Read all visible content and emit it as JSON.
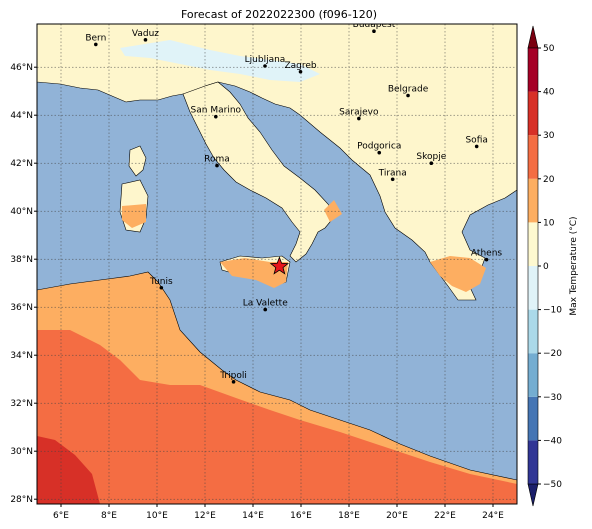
{
  "title": "Forecast of 2022022300 (f096-120)",
  "map": {
    "lon_range": [
      5,
      25
    ],
    "lat_range": [
      27.8,
      47.8
    ],
    "lon_ticks": [
      6,
      8,
      10,
      12,
      14,
      16,
      18,
      20,
      22,
      24
    ],
    "lat_ticks": [
      28,
      30,
      32,
      34,
      36,
      38,
      40,
      42,
      44,
      46
    ],
    "lon_tick_labels": [
      "6°E",
      "8°E",
      "10°E",
      "12°E",
      "14°E",
      "16°E",
      "18°E",
      "20°E",
      "22°E",
      "24°E"
    ],
    "lat_tick_labels": [
      "28°N",
      "30°N",
      "32°N",
      "34°N",
      "36°N",
      "38°N",
      "40°N",
      "42°N",
      "44°N",
      "46°N"
    ],
    "grid": true,
    "marker": {
      "name": "star",
      "lon": 15.1,
      "lat": 37.7,
      "color": "#e8161b"
    },
    "cities": [
      {
        "name": "Bern",
        "lon": 7.45,
        "lat": 46.95
      },
      {
        "name": "Vaduz",
        "lon": 9.52,
        "lat": 47.14
      },
      {
        "name": "Budapest",
        "lon": 19.04,
        "lat": 47.5
      },
      {
        "name": "Ljubljana",
        "lon": 14.5,
        "lat": 46.05
      },
      {
        "name": "Zagreb",
        "lon": 15.98,
        "lat": 45.81
      },
      {
        "name": "Belgrade",
        "lon": 20.46,
        "lat": 44.82
      },
      {
        "name": "San Marino",
        "lon": 12.45,
        "lat": 43.94
      },
      {
        "name": "Sarajevo",
        "lon": 18.41,
        "lat": 43.86
      },
      {
        "name": "Sofia",
        "lon": 23.32,
        "lat": 42.7
      },
      {
        "name": "Podgorica",
        "lon": 19.26,
        "lat": 42.44
      },
      {
        "name": "Skopje",
        "lon": 21.43,
        "lat": 42.0
      },
      {
        "name": "Roma",
        "lon": 12.5,
        "lat": 41.9
      },
      {
        "name": "Tirana",
        "lon": 19.82,
        "lat": 41.33
      },
      {
        "name": "Athens",
        "lon": 23.73,
        "lat": 37.98
      },
      {
        "name": "Tunis",
        "lon": 10.18,
        "lat": 36.81
      },
      {
        "name": "La Valette",
        "lon": 14.51,
        "lat": 35.9
      },
      {
        "name": "Tripoli",
        "lon": 13.19,
        "lat": 32.89
      }
    ]
  },
  "colorbar": {
    "label": "Max Temperature (°C)",
    "ticks": [
      -50,
      -40,
      -30,
      -20,
      -10,
      0,
      10,
      20,
      30,
      40,
      50
    ],
    "tick_labels": [
      "−50",
      "−40",
      "−30",
      "−20",
      "−10",
      "0",
      "10",
      "20",
      "30",
      "40",
      "50"
    ],
    "colors": [
      "#313695",
      "#4575b4",
      "#74add1",
      "#abd9e9",
      "#e0f3f8",
      "#fef9d0",
      "#fdae61",
      "#f46d43",
      "#d73027",
      "#a50026"
    ],
    "under_color": "#1b1f6b",
    "over_color": "#7a0010"
  },
  "fills": {
    "sea": "#91b3d7",
    "land_10_20": "#fef6cc",
    "land_0_10": "#e0f3f8",
    "warm_20_30": "#fdae61",
    "warm_30_40": "#f46d43",
    "hot_40_50": "#d73027"
  }
}
